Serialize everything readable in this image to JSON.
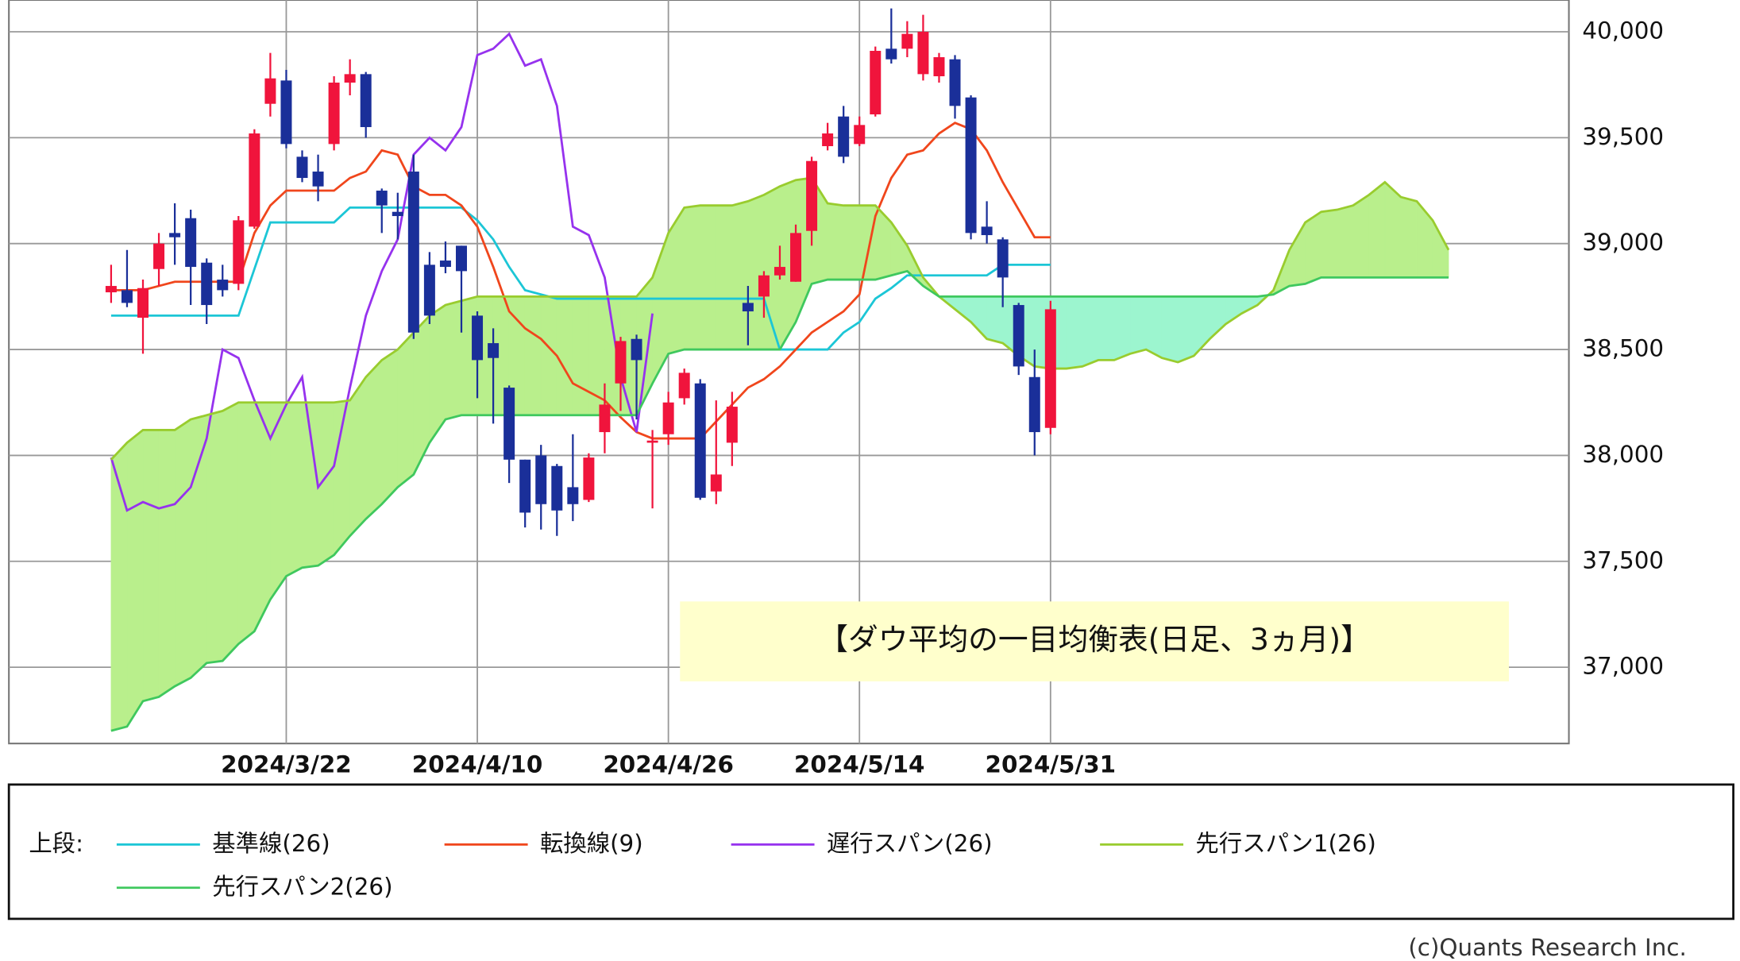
{
  "chart_data": {
    "type": "ichimoku",
    "annotation": "【ダウ平均の一目均衡表(日足、3ヵ月)】",
    "legend_title": "上段:",
    "credit": "(c)Quants Research Inc.",
    "categories": [
      null,
      null,
      null,
      null,
      null,
      null,
      null,
      null,
      null,
      null,
      null,
      "2024/3/22",
      null,
      null,
      null,
      null,
      null,
      null,
      null,
      null,
      null,
      null,
      null,
      "2024/4/10",
      null,
      null,
      null,
      null,
      null,
      null,
      null,
      null,
      null,
      null,
      null,
      "2024/4/26",
      null,
      null,
      null,
      null,
      null,
      null,
      null,
      null,
      null,
      null,
      null,
      "2024/5/14",
      null,
      null,
      null,
      null,
      null,
      null,
      null,
      null,
      null,
      null,
      null,
      "2024/5/31",
      null,
      null,
      null,
      null,
      null,
      null,
      null,
      null,
      null,
      null,
      null,
      null,
      null,
      null,
      null,
      null,
      null,
      null,
      null,
      null,
      null,
      null,
      null,
      null,
      null
    ],
    "ylim": [
      36640,
      40150
    ],
    "yticks": [
      {
        "value": 37000,
        "label": "37,000"
      },
      {
        "value": 37500,
        "label": "37,500"
      },
      {
        "value": 38000,
        "label": "38,000"
      },
      {
        "value": 38500,
        "label": "38,500"
      },
      {
        "value": 39000,
        "label": "39,000"
      },
      {
        "value": 39500,
        "label": "39,500"
      },
      {
        "value": 40000,
        "label": "40,000"
      }
    ],
    "grid": true,
    "up_color": "#f0143c",
    "down_color": "#1a2f99",
    "cloud_up_color": "#b9ef8c",
    "cloud_down_color": "#9cf5cf",
    "ohlc": {
      "open": [
        38770,
        38780,
        38650,
        38880,
        39050,
        39120,
        38910,
        38830,
        38810,
        39080,
        39660,
        39770,
        39410,
        39340,
        39470,
        39760,
        39800,
        39250,
        39150,
        39340,
        38900,
        38920,
        38990,
        38660,
        38530,
        38320,
        37980,
        38000,
        37950,
        37850,
        37790,
        38110,
        38340,
        38550,
        38060,
        38100,
        38270,
        38340,
        37830,
        38060,
        38720,
        38750,
        38850,
        38820,
        39060,
        39460,
        39600,
        39470,
        39610,
        39920,
        39920,
        39800,
        39790,
        39870,
        39690,
        39080,
        39020,
        38710,
        38370,
        38130,
        null,
        null,
        null,
        null,
        null,
        null,
        null,
        null,
        null,
        null,
        null,
        null,
        null,
        null,
        null,
        null,
        null,
        null,
        null,
        null,
        null,
        null,
        null,
        null,
        null
      ],
      "high": [
        38900,
        38970,
        38830,
        39050,
        39190,
        39160,
        38930,
        38900,
        39130,
        39540,
        39900,
        39820,
        39440,
        39420,
        39790,
        39870,
        39810,
        39260,
        39240,
        39420,
        38960,
        39010,
        38990,
        38680,
        38600,
        38330,
        37980,
        38050,
        37960,
        38100,
        38010,
        38340,
        38560,
        38570,
        38120,
        38300,
        38410,
        38360,
        38260,
        38300,
        38800,
        38870,
        38990,
        39090,
        39410,
        39570,
        39650,
        39600,
        39930,
        40110,
        40050,
        40080,
        39900,
        39890,
        39700,
        39200,
        39030,
        38720,
        38500,
        38730,
        null,
        null,
        null,
        null,
        null,
        null,
        null,
        null,
        null,
        null,
        null,
        null,
        null,
        null,
        null,
        null,
        null,
        null,
        null,
        null,
        null,
        null,
        null,
        null,
        null
      ],
      "low": [
        38720,
        38700,
        38480,
        38800,
        38900,
        38710,
        38620,
        38750,
        38780,
        39070,
        39600,
        39450,
        39290,
        39200,
        39440,
        39700,
        39500,
        39050,
        39020,
        38550,
        38620,
        38860,
        38580,
        38270,
        38150,
        37870,
        37660,
        37650,
        37620,
        37690,
        37780,
        38010,
        38210,
        38170,
        37750,
        38050,
        38240,
        37790,
        37770,
        37950,
        38520,
        38650,
        38830,
        38820,
        38990,
        39440,
        39380,
        39460,
        39600,
        39850,
        39880,
        39770,
        39760,
        39590,
        39020,
        39000,
        38700,
        38380,
        38000,
        38100,
        null,
        null,
        null,
        null,
        null,
        null,
        null,
        null,
        null,
        null,
        null,
        null,
        null,
        null,
        null,
        null,
        null,
        null,
        null,
        null,
        null,
        null,
        null,
        null,
        null
      ],
      "close": [
        38800,
        38720,
        38790,
        39000,
        39030,
        38890,
        38710,
        38780,
        39110,
        39520,
        39780,
        39470,
        39310,
        39270,
        39760,
        39800,
        39550,
        39180,
        39130,
        38580,
        38660,
        38890,
        38870,
        38450,
        38460,
        37980,
        37730,
        37770,
        37740,
        37770,
        37990,
        38240,
        38540,
        38450,
        38070,
        38250,
        38390,
        37800,
        37910,
        38230,
        38680,
        38850,
        38890,
        39050,
        39390,
        39520,
        39410,
        39560,
        39910,
        39870,
        39990,
        40000,
        39880,
        39650,
        39050,
        39040,
        38840,
        38420,
        38110,
        38690,
        null,
        null,
        null,
        null,
        null,
        null,
        null,
        null,
        null,
        null,
        null,
        null,
        null,
        null,
        null,
        null,
        null,
        null,
        null,
        null,
        null,
        null,
        null,
        null,
        null
      ]
    },
    "series": [
      {
        "name": "基準線(26)",
        "color": "#1cc6d6",
        "values": [
          38660,
          38660,
          38660,
          38660,
          38660,
          38660,
          38660,
          38660,
          38660,
          38880,
          39100,
          39100,
          39100,
          39100,
          39100,
          39170,
          39170,
          39170,
          39170,
          39170,
          39170,
          39170,
          39170,
          39110,
          39020,
          38890,
          38780,
          38760,
          38740,
          38740,
          38740,
          38740,
          38740,
          38740,
          38740,
          38740,
          38740,
          38740,
          38740,
          38740,
          38740,
          38740,
          38500,
          38500,
          38500,
          38500,
          38580,
          38630,
          38740,
          38790,
          38850,
          38850,
          38850,
          38850,
          38850,
          38850,
          38900,
          38900,
          38900,
          38900,
          null,
          null,
          null,
          null,
          null,
          null,
          null,
          null,
          null,
          null,
          null,
          null,
          null,
          null,
          null,
          null,
          null,
          null,
          null,
          null,
          null,
          null,
          null,
          null,
          null
        ]
      },
      {
        "name": "転換線(9)",
        "color": "#f0461c",
        "values": [
          38780,
          38780,
          38780,
          38800,
          38820,
          38820,
          38820,
          38820,
          38820,
          39050,
          39180,
          39250,
          39250,
          39250,
          39250,
          39310,
          39340,
          39440,
          39420,
          39270,
          39230,
          39230,
          39180,
          39080,
          38890,
          38680,
          38600,
          38550,
          38470,
          38340,
          38300,
          38260,
          38180,
          38110,
          38080,
          38080,
          38080,
          38080,
          38160,
          38240,
          38320,
          38360,
          38420,
          38500,
          38580,
          38630,
          38680,
          38760,
          39130,
          39310,
          39420,
          39440,
          39520,
          39570,
          39540,
          39440,
          39290,
          39160,
          39030,
          39030,
          null,
          null,
          null,
          null,
          null,
          null,
          null,
          null,
          null,
          null,
          null,
          null,
          null,
          null,
          null,
          null,
          null,
          null,
          null,
          null,
          null,
          null,
          null,
          null,
          null
        ]
      },
      {
        "name": "遅行スパン(26)",
        "color": "#9632ee",
        "values": [
          37990,
          37740,
          37780,
          37750,
          37770,
          37850,
          38080,
          38500,
          38460,
          38260,
          38080,
          38240,
          38370,
          37850,
          37950,
          38320,
          38660,
          38870,
          39020,
          39420,
          39500,
          39440,
          39550,
          39890,
          39920,
          39990,
          39840,
          39870,
          39650,
          39080,
          39040,
          38840,
          38370,
          38110,
          38670,
          null,
          null,
          null,
          null,
          null,
          null,
          null,
          null,
          null,
          null,
          null,
          null,
          null,
          null,
          null,
          null,
          null,
          null,
          null,
          null,
          null,
          null,
          null,
          null,
          null,
          null,
          null,
          null,
          null,
          null,
          null,
          null,
          null,
          null,
          null,
          null,
          null,
          null,
          null,
          null,
          null,
          null,
          null,
          null,
          null,
          null,
          null,
          null,
          null,
          null
        ]
      },
      {
        "name": "先行スパン1(26)",
        "color": "#99cc2e",
        "values": [
          37980,
          38060,
          38120,
          38120,
          38120,
          38170,
          38190,
          38210,
          38250,
          38250,
          38250,
          38250,
          38250,
          38250,
          38250,
          38260,
          38370,
          38450,
          38500,
          38580,
          38660,
          38710,
          38730,
          38750,
          38750,
          38750,
          38750,
          38750,
          38750,
          38750,
          38750,
          38750,
          38750,
          38750,
          38840,
          39050,
          39170,
          39180,
          39180,
          39180,
          39200,
          39230,
          39270,
          39300,
          39310,
          39190,
          39180,
          39180,
          39180,
          39100,
          38990,
          38840,
          38750,
          38690,
          38630,
          38550,
          38530,
          38470,
          38420,
          38410,
          38410,
          38420,
          38450,
          38450,
          38480,
          38500,
          38460,
          38440,
          38470,
          38550,
          38620,
          38670,
          38710,
          38780,
          38970,
          39100,
          39150,
          39160,
          39180,
          39230,
          39290,
          39220,
          39200,
          39110,
          38970
        ]
      },
      {
        "name": "先行スパン2(26)",
        "color": "#3fc85e",
        "values": [
          36700,
          36720,
          36840,
          36860,
          36910,
          36950,
          37020,
          37030,
          37110,
          37170,
          37320,
          37430,
          37470,
          37480,
          37530,
          37620,
          37700,
          37770,
          37850,
          37910,
          38060,
          38170,
          38190,
          38190,
          38190,
          38190,
          38190,
          38190,
          38190,
          38190,
          38190,
          38190,
          38190,
          38190,
          38340,
          38480,
          38500,
          38500,
          38500,
          38500,
          38500,
          38500,
          38500,
          38630,
          38810,
          38830,
          38830,
          38830,
          38830,
          38850,
          38870,
          38800,
          38750,
          38750,
          38750,
          38750,
          38750,
          38750,
          38750,
          38750,
          38750,
          38750,
          38750,
          38750,
          38750,
          38750,
          38750,
          38750,
          38750,
          38750,
          38750,
          38750,
          38750,
          38760,
          38800,
          38810,
          38840,
          38840,
          38840,
          38840,
          38840,
          38840,
          38840,
          38840,
          38840
        ]
      }
    ]
  }
}
